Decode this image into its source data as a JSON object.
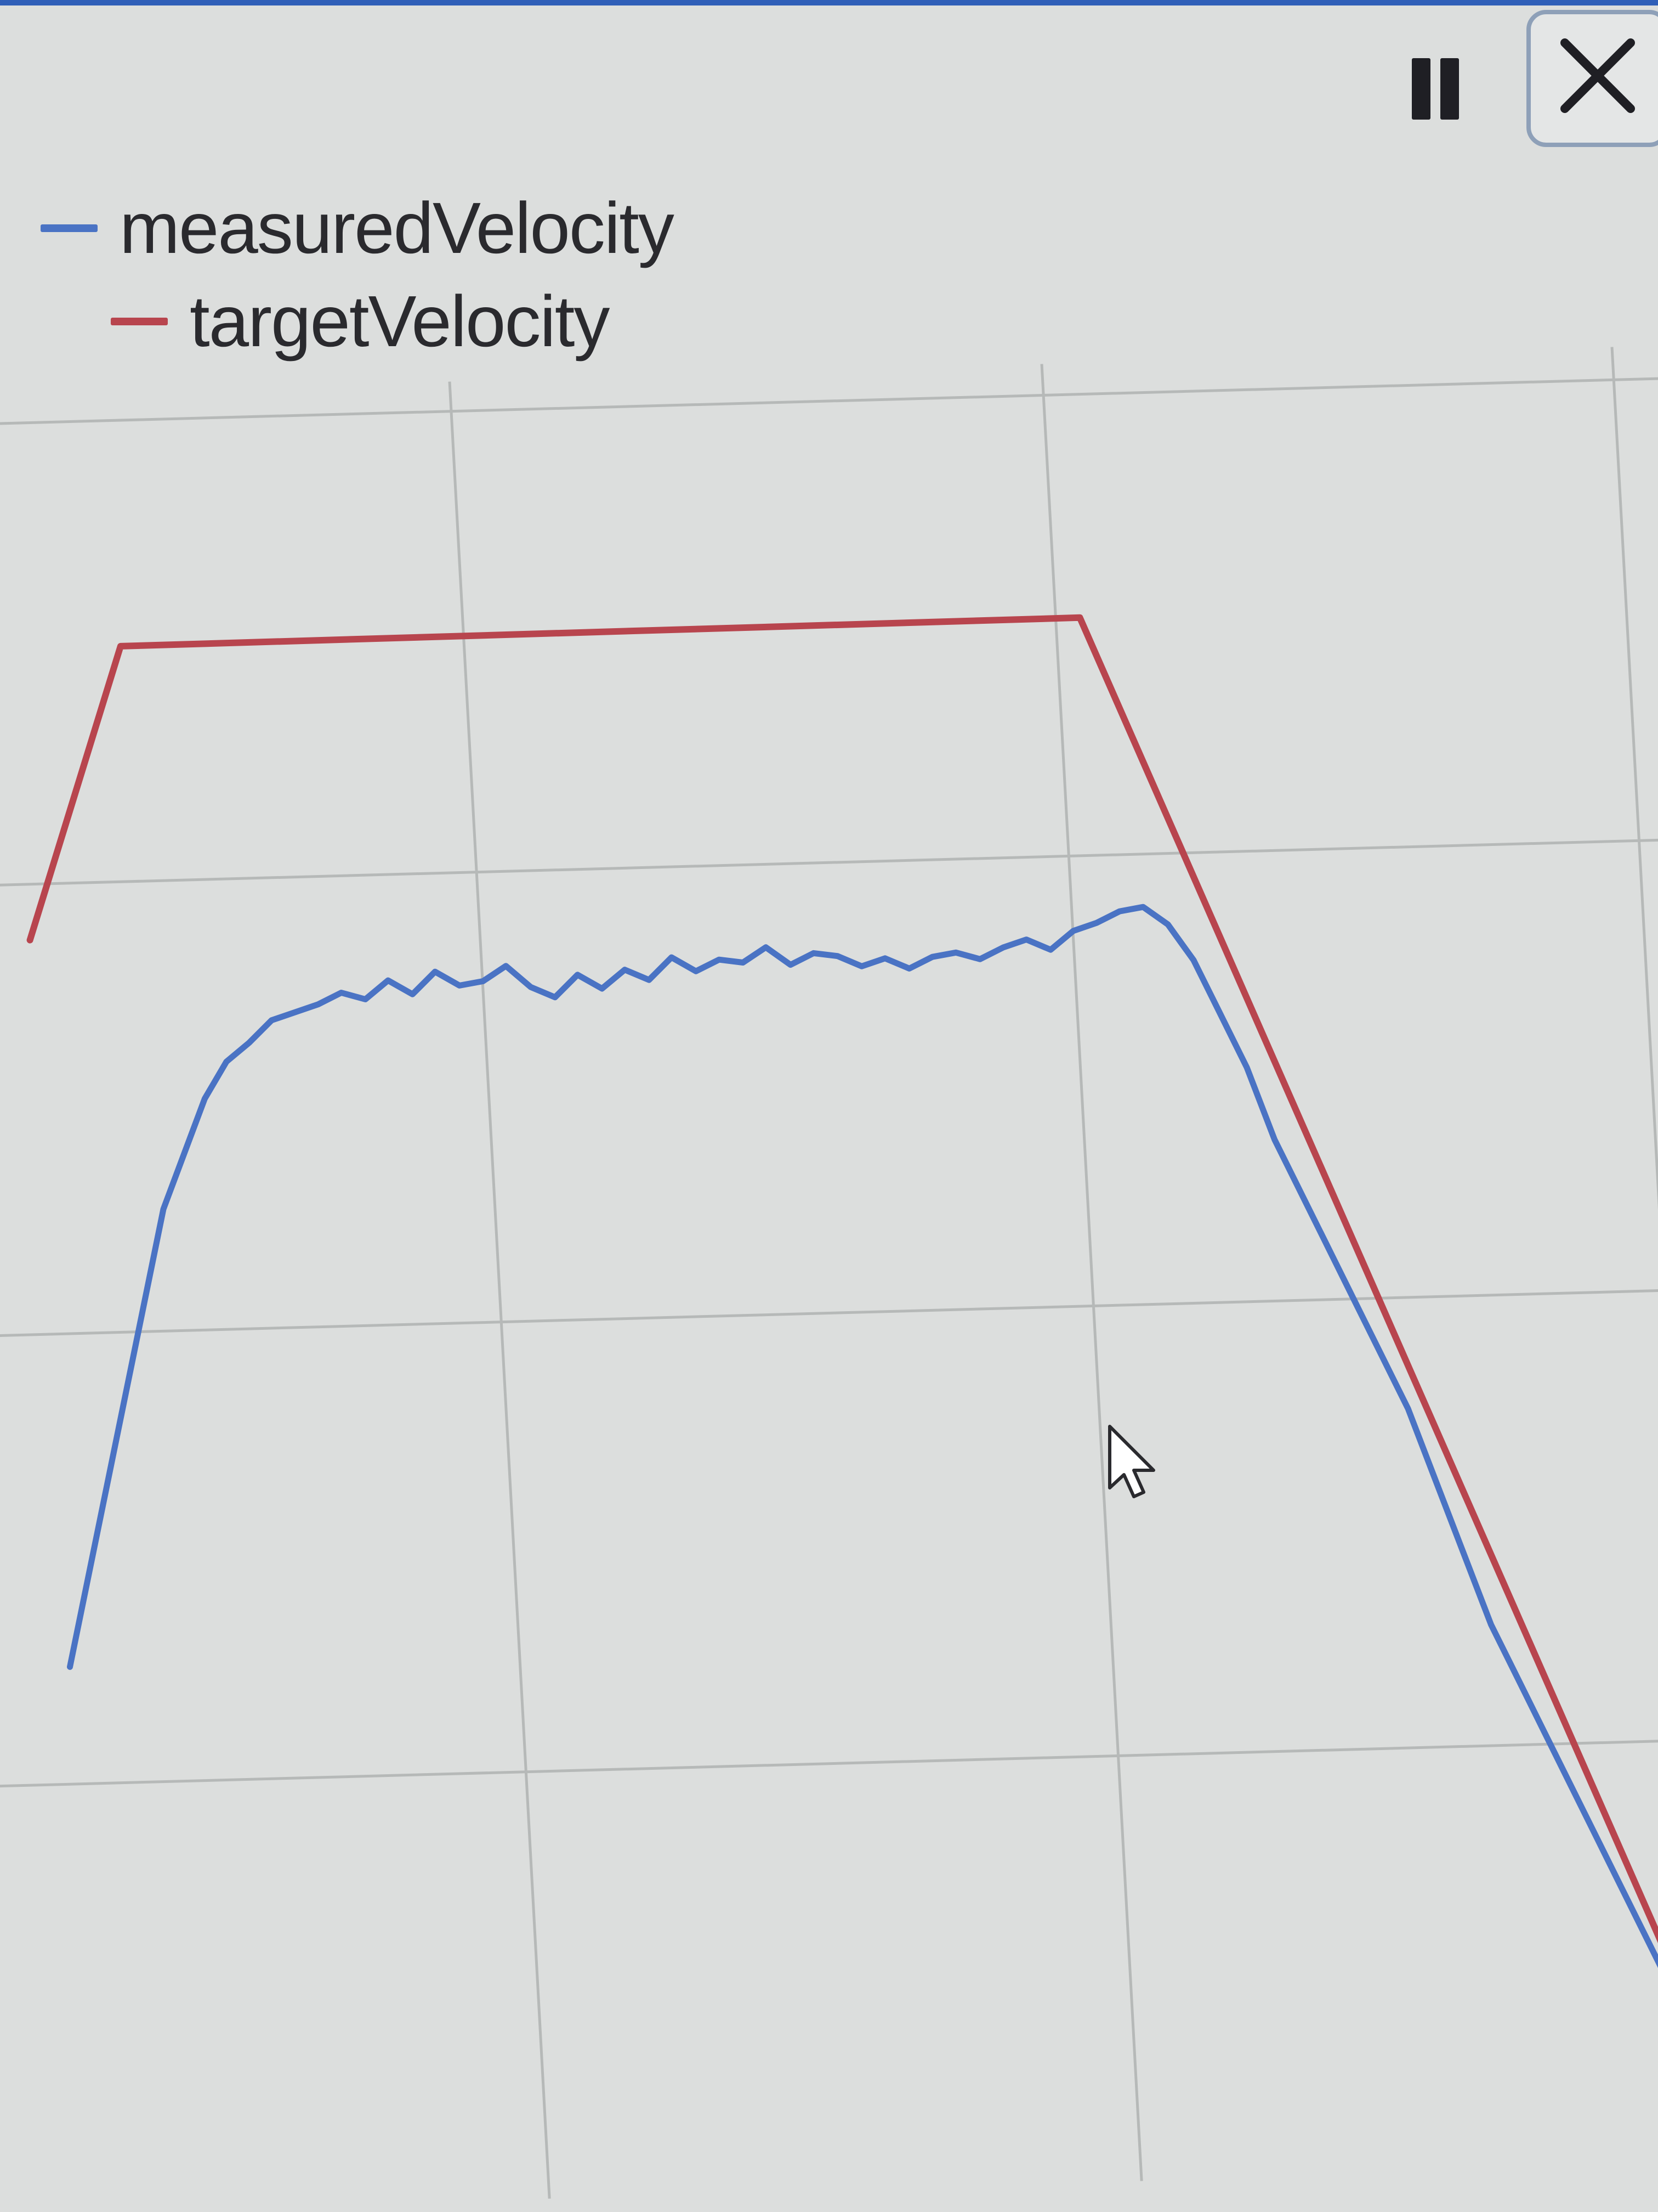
{
  "window": {
    "pause_icon": "pause-icon",
    "close_icon": "close-icon",
    "accent": "#2f5fb8"
  },
  "legend": {
    "position": "top-left",
    "items": [
      {
        "label": "measuredVelocity",
        "color": "#4a73c4"
      },
      {
        "label": "targetVelocity",
        "color": "#b8454e"
      }
    ]
  },
  "chart_data": {
    "type": "line",
    "title": "",
    "xlabel": "",
    "ylabel": "",
    "grid": true,
    "xlim": [
      0,
      140
    ],
    "ylim": [
      0,
      50
    ],
    "series": [
      {
        "name": "targetVelocity",
        "color": "#b8454e",
        "x": [
          0,
          9,
          90,
          140
        ],
        "y": [
          35,
          43,
          43,
          0
        ]
      },
      {
        "name": "measuredVelocity",
        "color": "#4a73c4",
        "x": [
          0,
          2,
          4,
          6,
          8,
          10,
          12,
          14,
          16,
          18,
          20,
          22,
          24,
          26,
          28,
          30,
          32,
          34,
          36,
          38,
          40,
          42,
          44,
          46,
          48,
          50,
          52,
          54,
          56,
          58,
          60,
          62,
          64,
          66,
          68,
          70,
          72,
          74,
          76,
          78,
          80,
          82,
          84,
          86,
          88,
          90,
          92,
          94,
          96,
          98,
          100,
          102,
          104,
          106,
          108,
          110,
          112,
          114,
          116,
          118,
          120,
          122,
          124,
          126,
          128,
          130,
          132,
          134,
          136,
          138,
          140
        ],
        "y": [
          15,
          17.5,
          20,
          22.5,
          25,
          27.5,
          29,
          30.5,
          31.5,
          32,
          32.6,
          32.8,
          33,
          33.3,
          33.1,
          33.6,
          33.2,
          33.8,
          33.4,
          33.5,
          33.9,
          33.3,
          33.0,
          33.6,
          33.2,
          33.7,
          33.4,
          34.0,
          33.6,
          33.9,
          33.8,
          34.2,
          33.7,
          34.0,
          33.9,
          33.6,
          33.8,
          33.5,
          33.8,
          33.9,
          33.7,
          34.0,
          34.2,
          33.9,
          34.4,
          34.6,
          34.9,
          35.0,
          34.5,
          33.5,
          32.0,
          30.5,
          28.5,
          27.0,
          25.5,
          24.0,
          22.5,
          21.0,
          19.0,
          17.0,
          15.0,
          13.5,
          12.0,
          10.5,
          9.0,
          7.5,
          6.0,
          4.5,
          3.0,
          1.8,
          0.8
        ]
      }
    ]
  }
}
